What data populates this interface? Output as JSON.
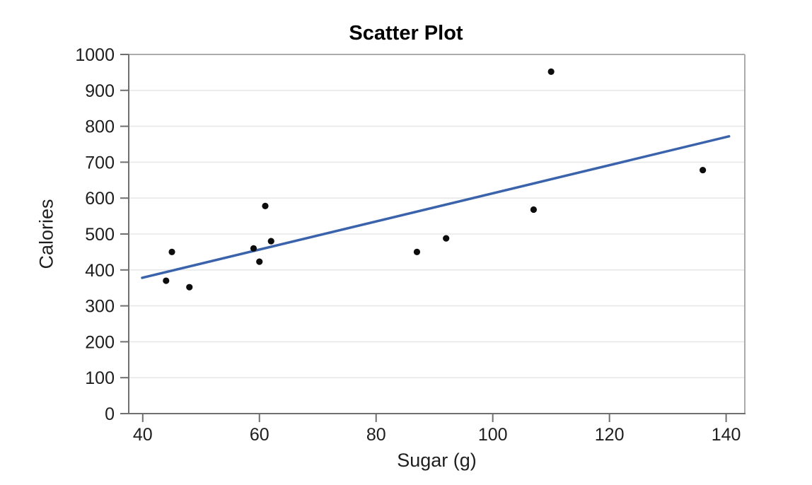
{
  "chart_data": {
    "type": "scatter",
    "title": "Scatter Plot",
    "xlabel": "Sugar (g)",
    "ylabel": "Calories",
    "xlim": [
      37.6,
      143.2
    ],
    "ylim": [
      0,
      1000
    ],
    "x_ticks": [
      40,
      60,
      80,
      100,
      120,
      140
    ],
    "y_ticks": [
      0,
      100,
      200,
      300,
      400,
      500,
      600,
      700,
      800,
      900,
      1000
    ],
    "grid": "horizontal-only",
    "legend": "none",
    "points": [
      {
        "x": 44,
        "y": 370
      },
      {
        "x": 45,
        "y": 450
      },
      {
        "x": 48,
        "y": 352
      },
      {
        "x": 59,
        "y": 460
      },
      {
        "x": 60,
        "y": 423
      },
      {
        "x": 61,
        "y": 578
      },
      {
        "x": 62,
        "y": 480
      },
      {
        "x": 87,
        "y": 450
      },
      {
        "x": 92,
        "y": 488
      },
      {
        "x": 107,
        "y": 568
      },
      {
        "x": 110,
        "y": 952
      },
      {
        "x": 136,
        "y": 678
      }
    ],
    "trend_line": {
      "x1": 39.9,
      "y1": 378,
      "x2": 140.5,
      "y2": 772
    },
    "colors": {
      "point": "#0d0d0d",
      "trend_line": "#3a63ac",
      "grid_line": "#e8e8e8",
      "axis_line": "#6f6f6f",
      "frame_line": "#ababab",
      "tick_label": "#1e1e1e",
      "title_text": "#000000",
      "background": "#ffffff"
    }
  }
}
